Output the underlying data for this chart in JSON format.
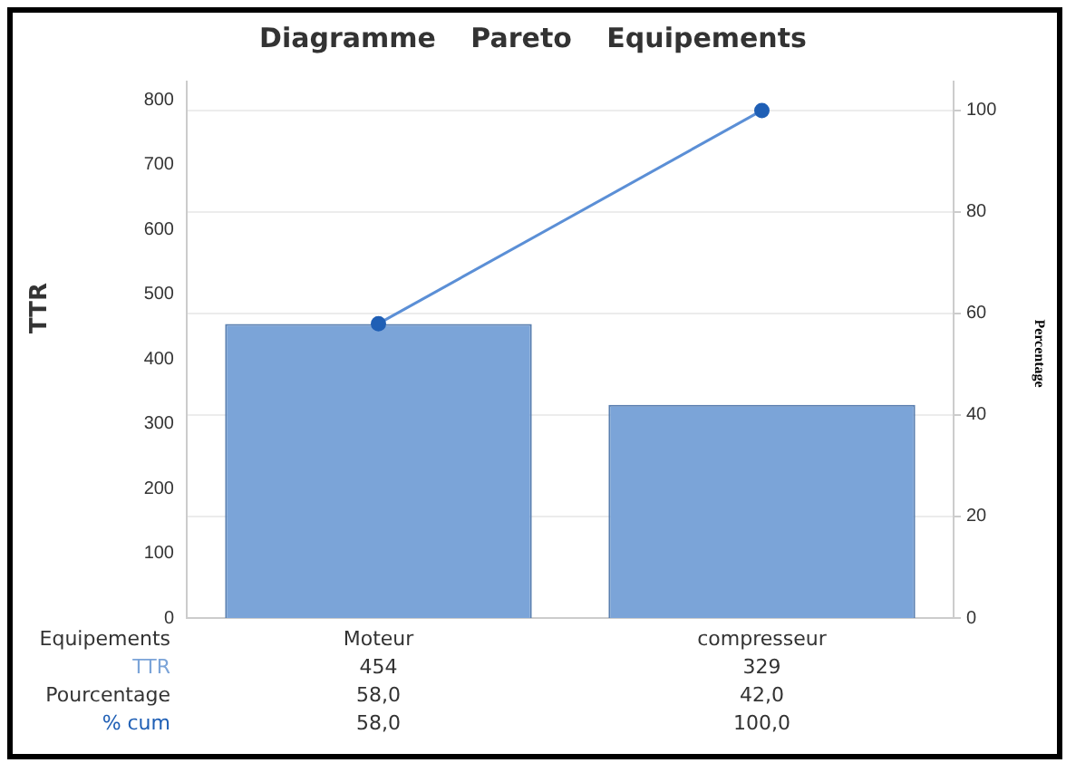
{
  "chart_data": {
    "type": "bar",
    "title": "Diagramme Pareto Equipements",
    "xlabel": "Equipements",
    "ylabel": "TTR",
    "y2label": "Percentage",
    "categories": [
      "Moteur",
      "compresseur"
    ],
    "series": [
      {
        "name": "TTR",
        "color": "#7ba4d8",
        "values": [
          454,
          329
        ],
        "value_labels": [
          "454",
          "329"
        ]
      },
      {
        "name": "% cum",
        "type": "line",
        "axis": "y2",
        "color": "#1f5fb5",
        "values": [
          58,
          100
        ],
        "value_labels": [
          "58,0",
          "100,0"
        ]
      }
    ],
    "annotations": [
      "Pourcentage",
      "58,0",
      "42,0"
    ],
    "ylim": [
      0,
      828
    ],
    "yticks": [
      0,
      100,
      200,
      300,
      400,
      500,
      600,
      700,
      800
    ],
    "y2lim": [
      0,
      105.7
    ],
    "y2ticks": [
      0,
      20,
      40,
      60,
      80,
      100
    ],
    "grid": "y",
    "legend": false,
    "marker": "circle",
    "line_style": "solid"
  }
}
